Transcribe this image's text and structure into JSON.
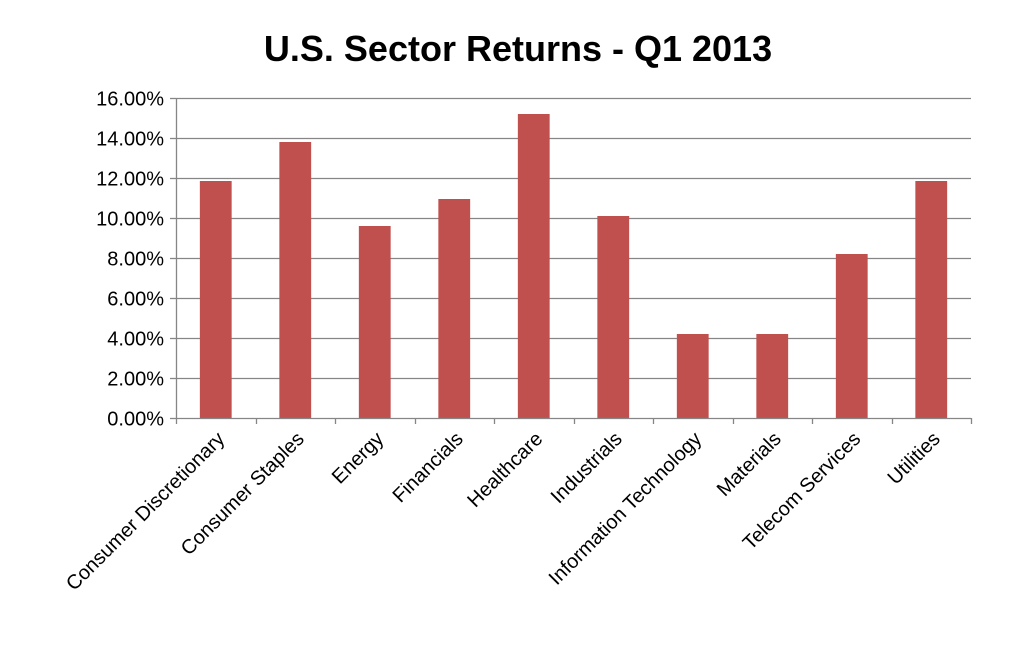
{
  "chart_data": {
    "type": "bar",
    "title": "U.S. Sector Returns - Q1 2013",
    "xlabel": "",
    "ylabel": "",
    "categories": [
      "Consumer Discretionary",
      "Consumer Staples",
      "Energy",
      "Financials",
      "Healthcare",
      "Industrials",
      "Information Technology",
      "Materials",
      "Telecom Services",
      "Utilities"
    ],
    "values": [
      11.85,
      13.8,
      9.6,
      10.95,
      15.2,
      10.1,
      4.2,
      4.2,
      8.2,
      11.85
    ],
    "ylim": [
      0,
      16
    ],
    "yticks": [
      0,
      2,
      4,
      6,
      8,
      10,
      12,
      14,
      16
    ],
    "ytick_labels": [
      "0.00%",
      "2.00%",
      "4.00%",
      "6.00%",
      "8.00%",
      "10.00%",
      "12.00%",
      "14.00%",
      "16.00%"
    ],
    "grid": true,
    "legend": "none",
    "colors": {
      "bar": "#c0504d",
      "grid": "#868686",
      "axis": "#868686"
    }
  }
}
